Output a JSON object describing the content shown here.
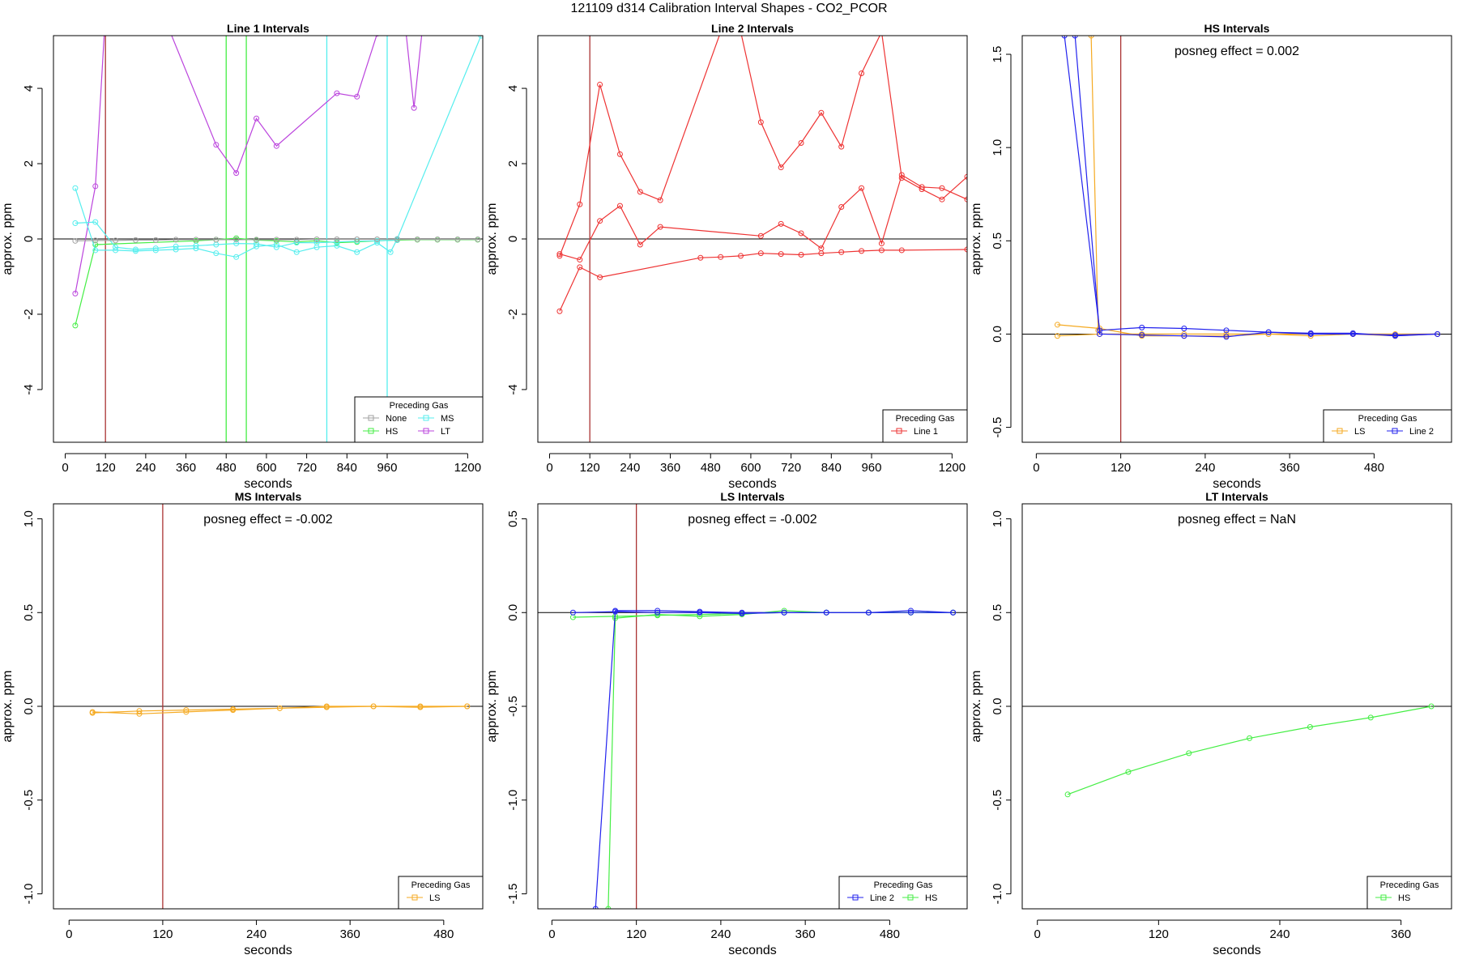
{
  "page_title": "121109  d314   Calibration Interval Shapes - CO2_PCOR",
  "colors": {
    "None": "#a0a0a0",
    "HS": "#44ee44",
    "MS": "#55eeee",
    "LT": "#bb44dd",
    "Line 1": "#ee3333",
    "Line 2": "#2222ee",
    "LS": "#f5aa22",
    "marker": "#aa3333",
    "axis": "#000000"
  },
  "chart_data": [
    {
      "type": "line",
      "title": "Line 1 Intervals",
      "xlabel": "seconds",
      "ylabel": "approx. ppm",
      "xlim": [
        -35,
        1245
      ],
      "ylim": [
        -5.4,
        5.4
      ],
      "xticks": [
        0,
        120,
        240,
        360,
        480,
        600,
        720,
        840,
        960,
        1200
      ],
      "yticks": [
        -4,
        -2,
        0,
        2,
        4
      ],
      "vlines": [
        {
          "x": 120,
          "color_key": "marker"
        },
        {
          "x": 480,
          "color_key": "HS"
        },
        {
          "x": 540,
          "color_key": "HS"
        },
        {
          "x": 780,
          "color_key": "MS"
        },
        {
          "x": 960,
          "color_key": "MS"
        }
      ],
      "annotation": "",
      "legend": {
        "title": "Preceding Gas",
        "entries": [
          "None",
          "MS",
          "HS",
          "LT"
        ],
        "columns": 2,
        "position": "bottom-right"
      },
      "series": [
        {
          "name": "LT",
          "x": [
            30,
            90,
            120
          ],
          "y": [
            -1.45,
            1.4,
            6.0
          ]
        },
        {
          "name": "LT",
          "x": [
            290,
            450,
            510,
            570,
            630,
            810,
            870,
            930,
            960
          ],
          "y": [
            6.0,
            2.5,
            1.75,
            3.2,
            2.47,
            3.87,
            3.78,
            5.45,
            6.0
          ]
        },
        {
          "name": "LT",
          "x": [
            1010,
            1040,
            1070
          ],
          "y": [
            6.0,
            3.48,
            6.0
          ]
        },
        {
          "name": "HS",
          "x": [
            30,
            90,
            390,
            450,
            510,
            570,
            630,
            690,
            750,
            810,
            870,
            930,
            990,
            1050,
            1110,
            1170,
            1230
          ],
          "y": [
            -2.3,
            -0.15,
            -0.05,
            -0.02,
            0.02,
            -0.03,
            -0.05,
            -0.08,
            -0.05,
            -0.1,
            -0.08,
            -0.05,
            -0.03,
            -0.02,
            -0.02,
            -0.02,
            -0.02
          ]
        },
        {
          "name": "MS",
          "x": [
            30,
            90,
            150,
            210,
            270,
            330,
            390,
            450,
            510,
            570,
            630,
            690,
            750,
            810,
            870,
            930,
            970,
            990,
            1240
          ],
          "y": [
            1.35,
            -0.3,
            -0.3,
            -0.32,
            -0.3,
            -0.28,
            -0.25,
            -0.38,
            -0.48,
            -0.2,
            -0.15,
            -0.35,
            -0.22,
            -0.18,
            -0.35,
            -0.1,
            -0.35,
            0.0,
            5.4
          ]
        },
        {
          "name": "MS",
          "x": [
            30,
            90,
            150,
            210,
            270,
            330,
            390,
            450,
            510,
            570,
            630,
            690,
            750,
            810,
            870,
            930,
            990
          ],
          "y": [
            0.42,
            0.45,
            -0.22,
            -0.28,
            -0.25,
            -0.2,
            -0.18,
            -0.15,
            -0.12,
            -0.13,
            -0.22,
            -0.1,
            -0.1,
            -0.08,
            -0.06,
            -0.05,
            -0.03
          ]
        },
        {
          "name": "None",
          "x": [
            30,
            90,
            150,
            210,
            270,
            330,
            390,
            450,
            510,
            570,
            630,
            690,
            750,
            810,
            870,
            930,
            990,
            1050,
            1110,
            1170,
            1230
          ],
          "y": [
            -0.05,
            -0.04,
            -0.04,
            -0.03,
            -0.03,
            -0.02,
            -0.02,
            -0.02,
            -0.02,
            -0.02,
            -0.02,
            -0.02,
            -0.01,
            -0.01,
            -0.01,
            -0.01,
            -0.01,
            -0.01,
            -0.01,
            -0.01,
            -0.01
          ]
        }
      ]
    },
    {
      "type": "line",
      "title": "Line 2 Intervals",
      "xlabel": "seconds",
      "ylabel": "approx. ppm",
      "xlim": [
        -35,
        1245
      ],
      "ylim": [
        -5.4,
        5.4
      ],
      "xticks": [
        0,
        120,
        240,
        360,
        480,
        600,
        720,
        840,
        960,
        1200
      ],
      "yticks": [
        -4,
        -2,
        0,
        2,
        4
      ],
      "vlines": [
        {
          "x": 120,
          "color_key": "marker"
        }
      ],
      "annotation": "",
      "legend": {
        "title": "Preceding Gas",
        "entries": [
          "Line 1"
        ],
        "columns": 1,
        "position": "bottom-right"
      },
      "series": [
        {
          "name": "Line 1",
          "x": [
            30,
            90,
            150,
            210,
            270,
            330,
            510,
            570,
            630,
            690,
            750,
            810,
            870,
            930,
            990,
            1050,
            1110,
            1170,
            1245
          ],
          "y": [
            -0.45,
            0.92,
            4.1,
            2.25,
            1.25,
            1.03,
            5.5,
            5.5,
            3.1,
            1.9,
            2.55,
            3.35,
            2.45,
            4.4,
            5.5,
            1.62,
            1.32,
            1.05,
            1.65
          ]
        },
        {
          "name": "Line 1",
          "x": [
            30,
            90,
            150,
            210,
            270,
            330,
            630,
            690,
            750,
            810,
            870,
            930,
            990,
            1050,
            1110,
            1170,
            1245
          ],
          "y": [
            -0.4,
            -0.55,
            0.48,
            0.88,
            -0.15,
            0.32,
            0.08,
            0.4,
            0.15,
            -0.25,
            0.85,
            1.35,
            -0.12,
            1.7,
            1.38,
            1.35,
            1.05
          ]
        },
        {
          "name": "Line 1",
          "x": [
            30,
            90,
            150,
            450,
            510,
            570,
            630,
            690,
            750,
            810,
            870,
            930,
            990,
            1050,
            1245
          ],
          "y": [
            -1.92,
            -0.75,
            -1.02,
            -0.5,
            -0.48,
            -0.45,
            -0.38,
            -0.4,
            -0.42,
            -0.38,
            -0.35,
            -0.32,
            -0.3,
            -0.3,
            -0.28
          ]
        }
      ]
    },
    {
      "type": "line",
      "title": "HS Intervals",
      "xlabel": "seconds",
      "ylabel": "approx. ppm",
      "xlim": [
        -20,
        590
      ],
      "ylim": [
        -0.58,
        1.6
      ],
      "xticks": [
        0,
        120,
        240,
        360,
        480
      ],
      "yticks": [
        -0.5,
        0.0,
        0.5,
        1.0,
        1.5
      ],
      "vlines": [
        {
          "x": 120,
          "color_key": "marker"
        }
      ],
      "annotation": "posneg effect = 0.002",
      "legend": {
        "title": "Preceding Gas",
        "entries": [
          "LS",
          "Line 2"
        ],
        "columns": 2,
        "position": "bottom-right"
      },
      "series": [
        {
          "name": "LS",
          "x": [
            30,
            90,
            150,
            210,
            270,
            330,
            390,
            450,
            510,
            570
          ],
          "y": [
            0.05,
            0.03,
            -0.01,
            -0.01,
            -0.01,
            0.0,
            0.0,
            0.0,
            -0.01,
            0.0
          ]
        },
        {
          "name": "LS",
          "x": [
            30,
            90,
            150,
            210,
            270,
            330,
            390,
            450,
            510,
            570
          ],
          "y": [
            -0.01,
            0.0,
            0.0,
            0.0,
            0.0,
            0.0,
            -0.01,
            0.0,
            0.0,
            0.0
          ]
        },
        {
          "name": "LS",
          "x": [
            78,
            88
          ],
          "y": [
            1.6,
            0.02
          ]
        },
        {
          "name": "Line 2",
          "x": [
            40,
            90,
            150,
            210,
            270,
            330,
            390,
            450,
            510,
            570
          ],
          "y": [
            1.6,
            0.02,
            0.035,
            0.03,
            0.02,
            0.01,
            0.0,
            0.0,
            -0.005,
            0.0
          ]
        },
        {
          "name": "Line 2",
          "x": [
            55,
            90,
            150,
            210,
            270,
            330,
            390,
            450,
            510,
            570
          ],
          "y": [
            1.6,
            0.0,
            -0.005,
            -0.01,
            -0.015,
            0.01,
            0.005,
            0.005,
            -0.01,
            0.0
          ]
        }
      ]
    },
    {
      "type": "line",
      "title": "MS Intervals",
      "xlabel": "seconds",
      "ylabel": "approx. ppm",
      "xlim": [
        -20,
        530
      ],
      "ylim": [
        -1.08,
        1.08
      ],
      "xticks": [
        0,
        120,
        240,
        360,
        480
      ],
      "yticks": [
        -1.0,
        -0.5,
        0.0,
        0.5,
        1.0
      ],
      "vlines": [
        {
          "x": 120,
          "color_key": "marker"
        }
      ],
      "annotation": "posneg effect = -0.002",
      "legend": {
        "title": "Preceding Gas",
        "entries": [
          "LS"
        ],
        "columns": 1,
        "position": "bottom-right"
      },
      "series": [
        {
          "name": "LS",
          "x": [
            30,
            90,
            150,
            210,
            270,
            330,
            390,
            450,
            510
          ],
          "y": [
            -0.03,
            -0.04,
            -0.03,
            -0.02,
            -0.01,
            0.0,
            0.0,
            0.0,
            0.0
          ]
        },
        {
          "name": "LS",
          "x": [
            30,
            90,
            150,
            210,
            270,
            330,
            390,
            450,
            510
          ],
          "y": [
            -0.035,
            -0.025,
            -0.02,
            -0.015,
            -0.01,
            -0.005,
            0.0,
            -0.005,
            0.0
          ]
        }
      ]
    },
    {
      "type": "line",
      "title": "LS Intervals",
      "xlabel": "seconds",
      "ylabel": "approx. ppm",
      "xlim": [
        -20,
        590
      ],
      "ylim": [
        -1.58,
        0.58
      ],
      "xticks": [
        0,
        120,
        240,
        360,
        480
      ],
      "yticks": [
        -1.5,
        -1.0,
        -0.5,
        0.0,
        0.5
      ],
      "vlines": [
        {
          "x": 120,
          "color_key": "marker"
        }
      ],
      "annotation": "posneg effect = -0.002",
      "legend": {
        "title": "Preceding Gas",
        "entries": [
          "Line 2",
          "HS"
        ],
        "columns": 2,
        "position": "bottom-right"
      },
      "series": [
        {
          "name": "HS",
          "x": [
            80,
            90,
            150,
            210,
            270,
            330,
            390,
            450,
            510,
            570
          ],
          "y": [
            -1.58,
            -0.03,
            -0.01,
            -0.02,
            -0.01,
            0.01,
            0.0,
            0.0,
            0.0,
            0.0
          ]
        },
        {
          "name": "HS",
          "x": [
            30,
            90,
            150,
            210,
            270,
            330,
            390,
            450,
            510,
            570
          ],
          "y": [
            -0.025,
            -0.02,
            -0.015,
            -0.01,
            -0.005,
            0.0,
            0.0,
            0.0,
            0.0,
            0.0
          ]
        },
        {
          "name": "Line 2",
          "x": [
            62,
            90,
            150,
            210,
            270,
            330,
            390,
            450,
            510,
            570
          ],
          "y": [
            -1.58,
            0.01,
            0.01,
            0.005,
            0.0,
            0.0,
            0.0,
            0.0,
            0.01,
            0.0
          ]
        },
        {
          "name": "Line 2",
          "x": [
            30,
            90,
            150,
            210,
            270,
            330,
            390,
            450,
            510,
            570
          ],
          "y": [
            0.0,
            0.005,
            0.0,
            0.0,
            -0.005,
            0.0,
            0.0,
            0.0,
            0.0,
            0.0
          ]
        }
      ]
    },
    {
      "type": "line",
      "title": "LT Intervals",
      "xlabel": "seconds",
      "ylabel": "approx. ppm",
      "xlim": [
        -15,
        410
      ],
      "ylim": [
        -1.08,
        1.08
      ],
      "xticks": [
        0,
        120,
        240,
        360
      ],
      "yticks": [
        -1.0,
        -0.5,
        0.0,
        0.5,
        1.0
      ],
      "vlines": [],
      "annotation": "posneg effect = NaN",
      "legend": {
        "title": "Preceding Gas",
        "entries": [
          "HS"
        ],
        "columns": 1,
        "position": "bottom-right"
      },
      "series": [
        {
          "name": "HS",
          "x": [
            30,
            90,
            150,
            210,
            270,
            330,
            390
          ],
          "y": [
            -0.47,
            -0.35,
            -0.25,
            -0.17,
            -0.11,
            -0.06,
            0.0
          ]
        }
      ]
    }
  ]
}
